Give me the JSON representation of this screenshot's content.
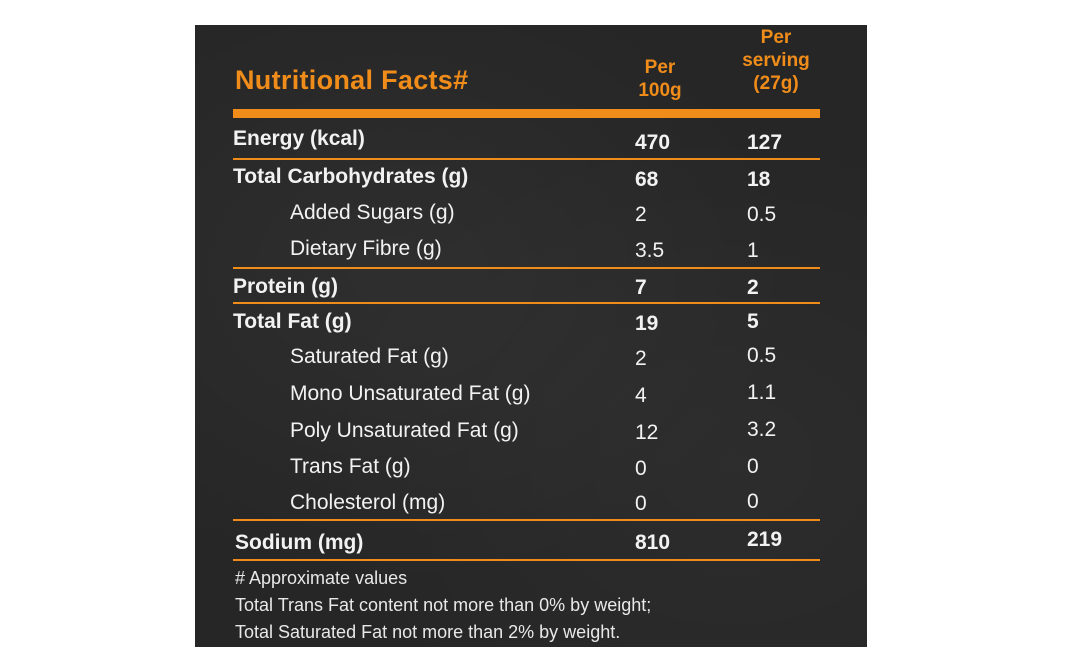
{
  "table": {
    "title": "Nutritional Facts#",
    "col_per_100g": [
      "Per",
      "100g"
    ],
    "col_per_serving": [
      "Per",
      "serving",
      "(27g)"
    ],
    "rows": [
      {
        "name": "Energy (kcal)",
        "per100": "470",
        "serving": "127",
        "bold": true
      },
      {
        "name": "Total Carbohydrates (g)",
        "per100": "68",
        "serving": "18",
        "bold": true
      },
      {
        "name": "Added Sugars (g)",
        "per100": "2",
        "serving": "0.5",
        "bold": false
      },
      {
        "name": "Dietary Fibre (g)",
        "per100": "3.5",
        "serving": "1",
        "bold": false
      },
      {
        "name": "Protein (g)",
        "per100": "7",
        "serving": "2",
        "bold": true
      },
      {
        "name": "Total Fat (g)",
        "per100": "19",
        "serving": "5",
        "bold": true
      },
      {
        "name": "Saturated Fat (g)",
        "per100": "2",
        "serving": "0.5",
        "bold": false
      },
      {
        "name": "Mono Unsaturated Fat (g)",
        "per100": "4",
        "serving": "1.1",
        "bold": false
      },
      {
        "name": "Poly Unsaturated Fat (g)",
        "per100": "12",
        "serving": "3.2",
        "bold": false
      },
      {
        "name": "Trans Fat (g)",
        "per100": "0",
        "serving": "0",
        "bold": false
      },
      {
        "name": "Cholesterol (mg)",
        "per100": "0",
        "serving": "0",
        "bold": false
      },
      {
        "name": "Sodium (mg)",
        "per100": "810",
        "serving": "219",
        "bold": true
      }
    ]
  },
  "footnotes": [
    "# Approximate values",
    "Total Trans Fat content not more than 0% by weight;",
    "Total Saturated Fat not more than 2% by weight."
  ],
  "colors": {
    "background": "#262626",
    "accent": "#f08c1a",
    "text": "#f2f2f2"
  }
}
